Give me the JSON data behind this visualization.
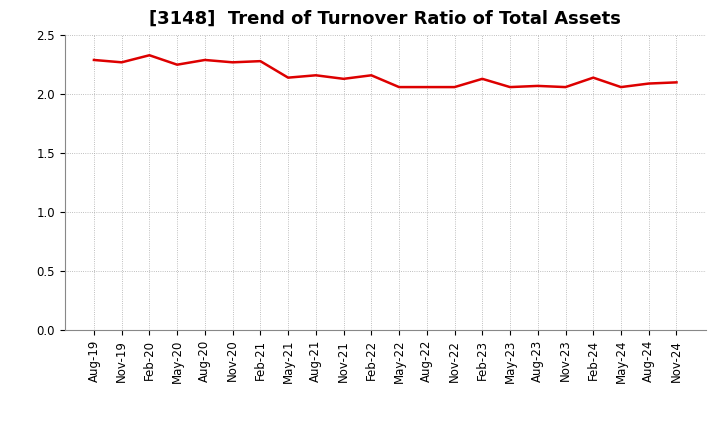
{
  "title": "[3148]  Trend of Turnover Ratio of Total Assets",
  "x_labels": [
    "Aug-19",
    "Nov-19",
    "Feb-20",
    "May-20",
    "Aug-20",
    "Nov-20",
    "Feb-21",
    "May-21",
    "Aug-21",
    "Nov-21",
    "Feb-22",
    "May-22",
    "Aug-22",
    "Nov-22",
    "Feb-23",
    "May-23",
    "Aug-23",
    "Nov-23",
    "Feb-24",
    "May-24",
    "Aug-24",
    "Nov-24"
  ],
  "values": [
    2.29,
    2.27,
    2.33,
    2.25,
    2.29,
    2.27,
    2.28,
    2.14,
    2.16,
    2.13,
    2.16,
    2.06,
    2.06,
    2.06,
    2.13,
    2.06,
    2.07,
    2.06,
    2.14,
    2.06,
    2.09,
    2.1
  ],
  "line_color": "#dd0000",
  "bg_color": "#ffffff",
  "plot_bg_color": "#ffffff",
  "grid_color": "#aaaaaa",
  "ylim": [
    0.0,
    2.5
  ],
  "yticks": [
    0.0,
    0.5,
    1.0,
    1.5,
    2.0,
    2.5
  ],
  "title_fontsize": 13,
  "tick_fontsize": 8.5,
  "line_width": 1.8
}
